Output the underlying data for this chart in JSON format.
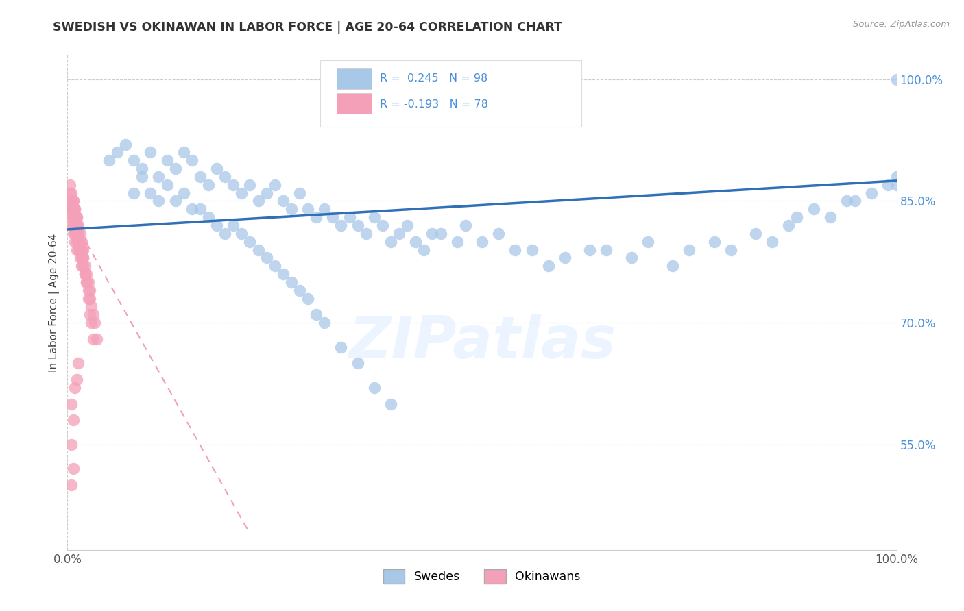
{
  "title": "SWEDISH VS OKINAWAN IN LABOR FORCE | AGE 20-64 CORRELATION CHART",
  "source_text": "Source: ZipAtlas.com",
  "ylabel": "In Labor Force | Age 20-64",
  "xlim": [
    0.0,
    1.0
  ],
  "ylim": [
    0.42,
    1.03
  ],
  "x_tick_labels": [
    "0.0%",
    "",
    "",
    "",
    "100.0%"
  ],
  "x_tick_positions": [
    0.0,
    0.25,
    0.5,
    0.75,
    1.0
  ],
  "y_tick_labels_right": [
    "55.0%",
    "70.0%",
    "85.0%",
    "100.0%"
  ],
  "y_tick_values_right": [
    0.55,
    0.7,
    0.85,
    1.0
  ],
  "R_swedish": 0.245,
  "N_swedish": 98,
  "R_okinawan": -0.193,
  "N_okinawan": 78,
  "swedish_color": "#a8c8e8",
  "okinawan_color": "#f4a0b8",
  "trend_swedish_color": "#3070b8",
  "trend_okinawan_color": "#f0a0b8",
  "watermark": "ZIPatlas",
  "sw_trend_x": [
    0.0,
    1.0
  ],
  "sw_trend_y": [
    0.815,
    0.875
  ],
  "ok_trend_x": [
    0.0,
    0.22
  ],
  "ok_trend_y": [
    0.84,
    0.44
  ],
  "swedish_x": [
    0.05,
    0.06,
    0.07,
    0.08,
    0.09,
    0.1,
    0.11,
    0.12,
    0.13,
    0.14,
    0.15,
    0.16,
    0.17,
    0.18,
    0.19,
    0.2,
    0.21,
    0.22,
    0.23,
    0.24,
    0.25,
    0.26,
    0.27,
    0.28,
    0.29,
    0.3,
    0.31,
    0.32,
    0.33,
    0.34,
    0.35,
    0.36,
    0.37,
    0.38,
    0.39,
    0.4,
    0.41,
    0.42,
    0.43,
    0.44,
    0.45,
    0.47,
    0.48,
    0.5,
    0.52,
    0.54,
    0.56,
    0.58,
    0.6,
    0.63,
    0.65,
    0.68,
    0.7,
    0.73,
    0.75,
    0.78,
    0.8,
    0.83,
    0.85,
    0.87,
    0.88,
    0.9,
    0.92,
    0.94,
    0.95,
    0.97,
    0.99,
    1.0,
    1.0,
    1.0,
    0.08,
    0.09,
    0.1,
    0.11,
    0.12,
    0.13,
    0.14,
    0.15,
    0.16,
    0.17,
    0.18,
    0.19,
    0.2,
    0.21,
    0.22,
    0.23,
    0.24,
    0.25,
    0.26,
    0.27,
    0.28,
    0.29,
    0.3,
    0.31,
    0.33,
    0.35,
    0.37,
    0.39
  ],
  "swedish_y": [
    0.9,
    0.91,
    0.92,
    0.9,
    0.89,
    0.91,
    0.88,
    0.9,
    0.89,
    0.91,
    0.9,
    0.88,
    0.87,
    0.89,
    0.88,
    0.87,
    0.86,
    0.87,
    0.85,
    0.86,
    0.87,
    0.85,
    0.84,
    0.86,
    0.84,
    0.83,
    0.84,
    0.83,
    0.82,
    0.83,
    0.82,
    0.81,
    0.83,
    0.82,
    0.8,
    0.81,
    0.82,
    0.8,
    0.79,
    0.81,
    0.81,
    0.8,
    0.82,
    0.8,
    0.81,
    0.79,
    0.79,
    0.77,
    0.78,
    0.79,
    0.79,
    0.78,
    0.8,
    0.77,
    0.79,
    0.8,
    0.79,
    0.81,
    0.8,
    0.82,
    0.83,
    0.84,
    0.83,
    0.85,
    0.85,
    0.86,
    0.87,
    0.88,
    0.87,
    1.0,
    0.86,
    0.88,
    0.86,
    0.85,
    0.87,
    0.85,
    0.86,
    0.84,
    0.84,
    0.83,
    0.82,
    0.81,
    0.82,
    0.81,
    0.8,
    0.79,
    0.78,
    0.77,
    0.76,
    0.75,
    0.74,
    0.73,
    0.71,
    0.7,
    0.67,
    0.65,
    0.62,
    0.6
  ],
  "okinawan_x": [
    0.005,
    0.005,
    0.005,
    0.005,
    0.005,
    0.007,
    0.007,
    0.007,
    0.007,
    0.007,
    0.007,
    0.007,
    0.007,
    0.009,
    0.009,
    0.009,
    0.009,
    0.009,
    0.009,
    0.009,
    0.011,
    0.011,
    0.011,
    0.011,
    0.011,
    0.011,
    0.011,
    0.013,
    0.013,
    0.013,
    0.013,
    0.013,
    0.013,
    0.015,
    0.015,
    0.015,
    0.015,
    0.015,
    0.017,
    0.017,
    0.017,
    0.017,
    0.019,
    0.019,
    0.019,
    0.021,
    0.021,
    0.023,
    0.023,
    0.025,
    0.025,
    0.027,
    0.027,
    0.029,
    0.031,
    0.033,
    0.035,
    0.003,
    0.003,
    0.005,
    0.005,
    0.007,
    0.007,
    0.009,
    0.009,
    0.011,
    0.011,
    0.013,
    0.015,
    0.017,
    0.019,
    0.021,
    0.023,
    0.025,
    0.027,
    0.029,
    0.031
  ],
  "okinawan_y": [
    0.84,
    0.85,
    0.83,
    0.82,
    0.84,
    0.83,
    0.84,
    0.82,
    0.83,
    0.85,
    0.81,
    0.83,
    0.84,
    0.82,
    0.83,
    0.84,
    0.81,
    0.82,
    0.83,
    0.8,
    0.81,
    0.82,
    0.83,
    0.8,
    0.81,
    0.82,
    0.79,
    0.8,
    0.81,
    0.82,
    0.79,
    0.8,
    0.81,
    0.79,
    0.8,
    0.81,
    0.78,
    0.79,
    0.78,
    0.79,
    0.8,
    0.77,
    0.77,
    0.78,
    0.79,
    0.76,
    0.77,
    0.75,
    0.76,
    0.74,
    0.75,
    0.73,
    0.74,
    0.72,
    0.71,
    0.7,
    0.68,
    0.86,
    0.87,
    0.85,
    0.86,
    0.84,
    0.85,
    0.83,
    0.84,
    0.82,
    0.83,
    0.81,
    0.8,
    0.79,
    0.78,
    0.76,
    0.75,
    0.73,
    0.71,
    0.7,
    0.68
  ],
  "okinawan_outliers_x": [
    0.005,
    0.005,
    0.005,
    0.007,
    0.007,
    0.009,
    0.011,
    0.013
  ],
  "okinawan_outliers_y": [
    0.6,
    0.55,
    0.5,
    0.58,
    0.52,
    0.62,
    0.63,
    0.65
  ]
}
